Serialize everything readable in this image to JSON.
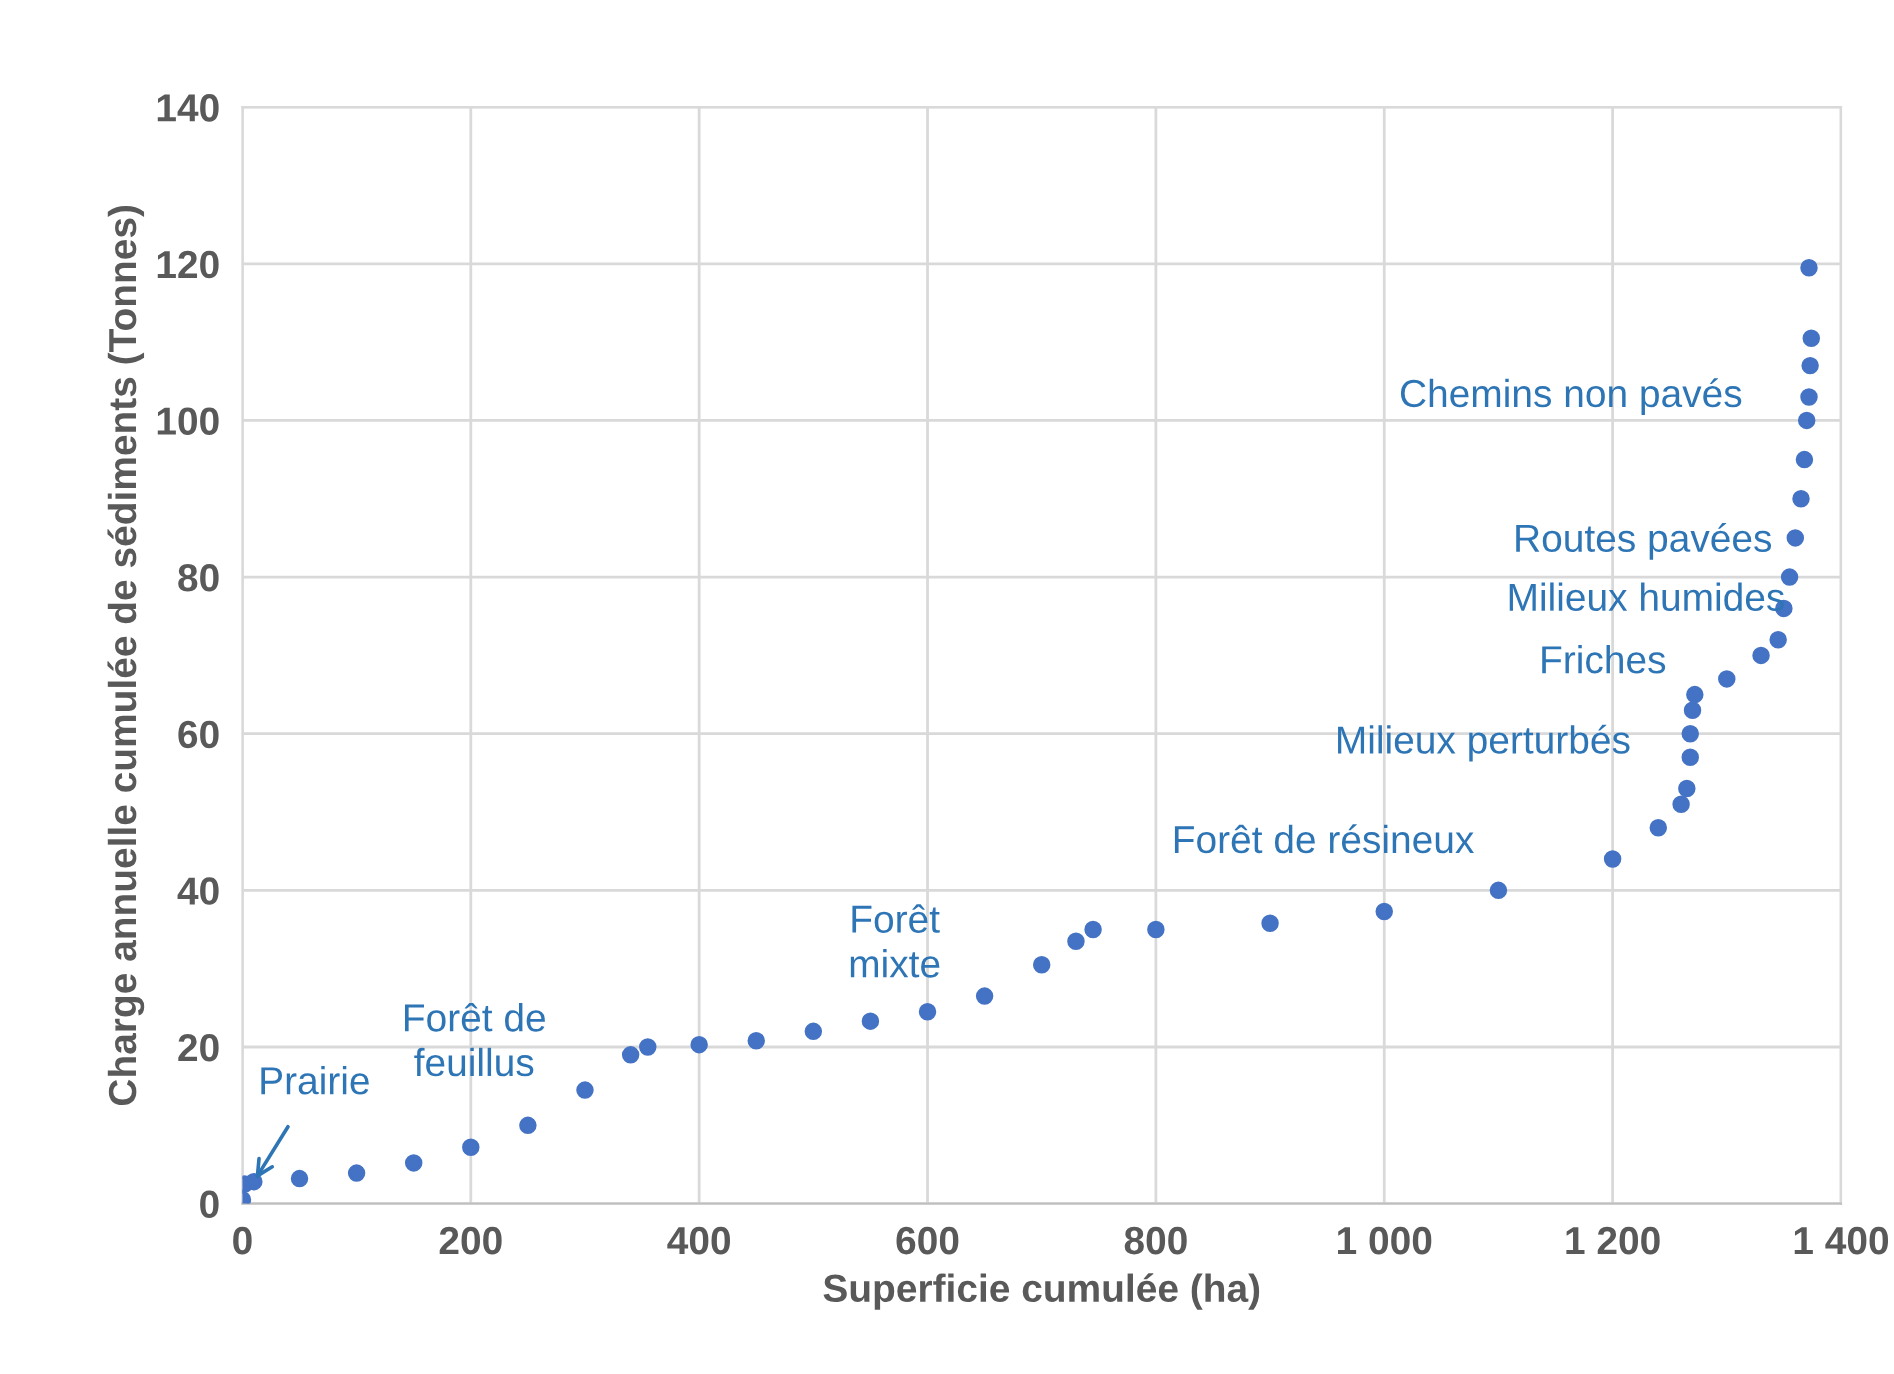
{
  "chart_data": {
    "type": "scatter",
    "xlabel": "Superficie cumulée (ha)",
    "ylabel": "Charge annuelle cumulée de sédiments (Tonnes)",
    "series": [
      {
        "color": "#4472c4",
        "x": [
          0,
          2,
          10,
          50,
          100,
          150,
          200,
          250,
          300,
          340,
          355,
          400,
          450,
          500,
          550,
          600,
          650,
          700,
          730,
          745,
          800,
          900,
          1000,
          1100,
          1200,
          1240,
          1260,
          1265,
          1268,
          1268,
          1270,
          1272,
          1300,
          1330,
          1345,
          1350,
          1355,
          1360,
          1365,
          1368,
          1370,
          1372,
          1373,
          1374,
          1372
        ],
        "values": [
          0.5,
          2.5,
          2.8,
          3.2,
          3.9,
          5.2,
          7.2,
          10,
          14.5,
          19,
          20,
          20.3,
          20.8,
          22,
          23.3,
          24.5,
          26.5,
          30.5,
          33.5,
          35,
          35,
          35.8,
          37.3,
          40,
          44,
          48,
          51,
          53,
          57,
          60,
          63,
          65,
          67,
          70,
          72,
          76,
          80,
          85,
          90,
          95,
          100,
          103,
          107,
          110.5,
          119.5
        ]
      }
    ],
    "marker": "circle",
    "xlim": [
      0,
      1400
    ],
    "xticks": [
      0,
      200,
      400,
      600,
      800,
      {
        "value": 1000,
        "label": "1 000"
      },
      {
        "value": 1200,
        "label": "1 200"
      },
      {
        "value": 1400,
        "label": "1 400"
      }
    ],
    "ylim": [
      0,
      140
    ],
    "yticks": [
      0,
      20,
      40,
      60,
      80,
      100,
      120,
      140
    ],
    "grid": true,
    "annotations": [
      {
        "text": "Prairie",
        "x": 10,
        "y": 2.8
      },
      "Forêt de\nfeuillus",
      "Forêt\nmixte",
      "Forêt de résineux",
      "Milieux perturbés",
      "Friches",
      "Milieux humides",
      "Routes pavées",
      "Chemins non pavés"
    ]
  }
}
